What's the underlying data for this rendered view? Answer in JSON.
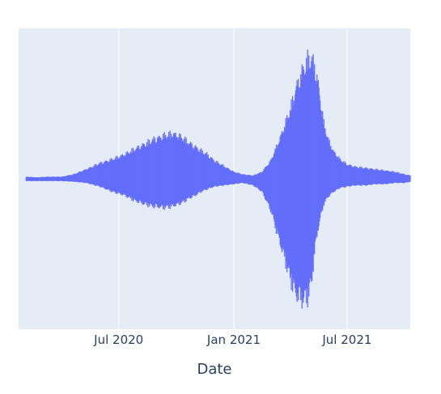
{
  "chart_data": {
    "type": "area",
    "title": "",
    "xlabel": "Date",
    "ylabel": "",
    "grid": true,
    "legend": "none",
    "x_tick_labels": [
      "Jul 2020",
      "Jan 2021",
      "Jul 2021"
    ],
    "x_tick_dates": [
      "2020-07-01",
      "2021-01-01",
      "2021-07-01"
    ],
    "xlim": [
      "2020-01-23",
      "2021-10-10"
    ],
    "ylim": [
      -1.0,
      1.0
    ],
    "series": [
      {
        "color": "#636efa",
        "x": [
          "2020-01-23",
          "2020-02-05",
          "2020-02-20",
          "2020-03-10",
          "2020-04-01",
          "2020-04-20",
          "2020-05-10",
          "2020-06-01",
          "2020-06-20",
          "2020-07-10",
          "2020-07-25",
          "2020-08-10",
          "2020-08-25",
          "2020-09-10",
          "2020-09-25",
          "2020-10-10",
          "2020-10-20",
          "2020-11-01",
          "2020-11-10",
          "2020-11-20",
          "2020-12-01",
          "2020-12-15",
          "2021-01-01",
          "2021-01-15",
          "2021-02-01",
          "2021-02-15",
          "2021-03-01",
          "2021-03-15",
          "2021-04-01",
          "2021-04-10",
          "2021-04-20",
          "2021-04-28",
          "2021-05-05",
          "2021-05-10",
          "2021-05-15",
          "2021-05-20",
          "2021-05-25",
          "2021-06-01",
          "2021-06-10",
          "2021-06-20",
          "2021-07-01",
          "2021-07-15",
          "2021-08-01",
          "2021-08-15",
          "2021-09-01",
          "2021-09-15",
          "2021-10-01",
          "2021-10-10"
        ],
        "upper": [
          0.01,
          0.02,
          0.015,
          0.02,
          0.02,
          0.04,
          0.08,
          0.13,
          0.16,
          0.2,
          0.24,
          0.28,
          0.32,
          0.35,
          0.37,
          0.34,
          0.3,
          0.26,
          0.23,
          0.2,
          0.15,
          0.11,
          0.06,
          0.04,
          0.03,
          0.06,
          0.15,
          0.32,
          0.56,
          0.73,
          0.87,
          0.96,
          0.98,
          0.92,
          0.8,
          0.62,
          0.45,
          0.32,
          0.22,
          0.16,
          0.12,
          0.1,
          0.09,
          0.08,
          0.07,
          0.06,
          0.04,
          0.03
        ],
        "lower": [
          -0.01,
          -0.015,
          -0.015,
          -0.015,
          -0.015,
          -0.02,
          -0.03,
          -0.06,
          -0.1,
          -0.13,
          -0.17,
          -0.2,
          -0.22,
          -0.23,
          -0.22,
          -0.19,
          -0.16,
          -0.13,
          -0.1,
          -0.08,
          -0.06,
          -0.05,
          -0.04,
          -0.03,
          -0.05,
          -0.1,
          -0.25,
          -0.5,
          -0.8,
          -0.93,
          -0.98,
          -0.97,
          -0.85,
          -0.6,
          -0.42,
          -0.3,
          -0.2,
          -0.14,
          -0.1,
          -0.07,
          -0.06,
          -0.05,
          -0.05,
          -0.04,
          -0.04,
          -0.03,
          -0.03,
          -0.02
        ]
      }
    ]
  }
}
